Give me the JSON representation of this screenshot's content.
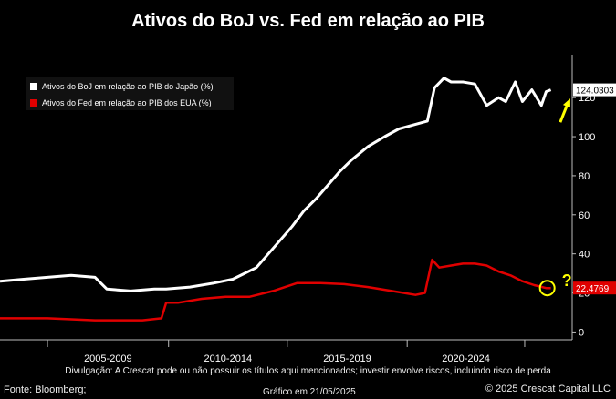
{
  "chart_data": {
    "type": "line",
    "title": "Ativos do BoJ vs. Fed em relação ao PIB",
    "x_categories": [
      "2005-2009",
      "2010-2014",
      "2015-2019",
      "2020-2024"
    ],
    "ylim": [
      -4,
      142
    ],
    "y_ticks": [
      0,
      20,
      40,
      60,
      80,
      100,
      120
    ],
    "y_tick_labels": [
      "0",
      "20",
      "40",
      "60",
      "80",
      "100",
      "120"
    ],
    "legend_position": "top-left",
    "series": [
      {
        "name": "Ativos do BoJ em relação ao PIB do Japão (%)",
        "color": "#ffffff",
        "last_value_label": "124.0303",
        "x": [
          2002.0,
          2003.0,
          2004.0,
          2005.0,
          2006.0,
          2006.5,
          2007.5,
          2008.5,
          2009.0,
          2010.0,
          2011.0,
          2011.8,
          2012.3,
          2012.8,
          2013.3,
          2013.8,
          2014.3,
          2014.8,
          2015.3,
          2015.8,
          2016.3,
          2016.8,
          2017.5,
          2018.2,
          2018.8,
          2019.4,
          2020.0,
          2020.3,
          2020.7,
          2021.0,
          2021.5,
          2022.0,
          2022.5,
          2023.0,
          2023.3,
          2023.7,
          2024.0,
          2024.4,
          2024.8,
          2025.0,
          2025.2
        ],
        "values": [
          26,
          27,
          28,
          29,
          28,
          22,
          21,
          22,
          22,
          23,
          25,
          27,
          30,
          33,
          40,
          47,
          54,
          62,
          68,
          75,
          82,
          88,
          95,
          100,
          104,
          106,
          108,
          125,
          130,
          128,
          128,
          127,
          116,
          120,
          118,
          128,
          118,
          124,
          116,
          123,
          124
        ]
      },
      {
        "name": "Ativos do Fed em relação ao PIB dos EUA (%)",
        "color": "#e00000",
        "last_value_label": "22.4769",
        "x": [
          2002.0,
          2004.0,
          2006.0,
          2008.0,
          2008.8,
          2009.0,
          2009.5,
          2010.5,
          2011.5,
          2012.5,
          2013.5,
          2014.5,
          2015.5,
          2016.5,
          2017.5,
          2018.5,
          2019.5,
          2019.9,
          2020.2,
          2020.5,
          2021.0,
          2021.5,
          2022.0,
          2022.5,
          2023.0,
          2023.5,
          2024.0,
          2024.5,
          2025.0,
          2025.2
        ],
        "values": [
          7,
          7,
          6,
          6,
          7,
          15,
          15,
          17,
          18,
          18,
          21,
          25,
          25,
          24.5,
          23,
          21,
          19,
          20,
          37,
          33,
          34,
          35,
          35,
          34,
          31,
          29,
          26,
          24,
          22.5,
          22.5
        ]
      }
    ],
    "annotations": [
      {
        "type": "arrow",
        "color": "#ffff00",
        "near_series": "Ativos do BoJ em relação ao PIB do Japão (%)",
        "direction": "up"
      },
      {
        "type": "circle",
        "color": "#ffff00",
        "near_series": "Ativos do Fed em relação ao PIB dos EUA (%)"
      },
      {
        "type": "text",
        "text": "?",
        "color": "#ffff00"
      }
    ]
  },
  "legend": {
    "boj_label": "Ativos do BoJ em relação ao PIB do Japão (%)",
    "fed_label": "Ativos do Fed em relação ao PIB dos EUA (%)"
  },
  "footer": {
    "disclaimer": "Divulgação: A Crescat pode ou não possuir os títulos aqui mencionados; investir envolve riscos, incluindo risco de perda",
    "source": "Fonte: Bloomberg;",
    "date": "Gráfico em 21/05/2025",
    "copyright": "© 2025 Crescat Capital LLC"
  },
  "colors": {
    "background": "#000000",
    "boj": "#ffffff",
    "fed": "#e00000",
    "annotation": "#ffff00"
  }
}
